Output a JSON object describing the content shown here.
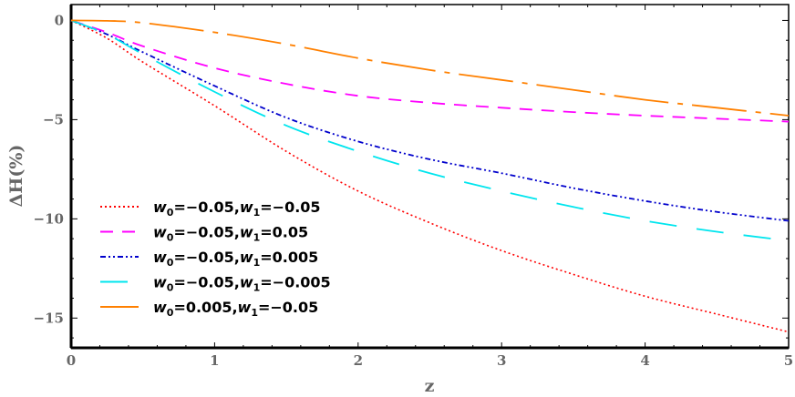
{
  "chart_data": {
    "type": "line",
    "title": "",
    "xlabel": "z",
    "ylabel": "ΔH(%)",
    "xlim": [
      0,
      5
    ],
    "ylim": [
      -16.5,
      0.8
    ],
    "xticks": [
      0,
      1,
      2,
      3,
      4,
      5
    ],
    "yticks": [
      0,
      -5,
      -10,
      -15
    ],
    "ytick_labels": [
      "0",
      "−5",
      "−10",
      "−15"
    ],
    "grid": false,
    "legend_position": "bottom-left",
    "x": [
      0,
      0.25,
      0.5,
      1,
      1.5,
      2,
      2.5,
      3,
      3.5,
      4,
      4.5,
      5
    ],
    "series": [
      {
        "name": "w0=−0.05,w1=−0.05",
        "color": "#ff0000",
        "dash": "dotted",
        "values": [
          0,
          -0.9,
          -2.1,
          -4.3,
          -6.6,
          -8.6,
          -10.2,
          -11.6,
          -12.8,
          -13.9,
          -14.8,
          -15.7
        ]
      },
      {
        "name": "w0=−0.05,w1=0.05",
        "color": "#ff00ff",
        "dash": "dashed",
        "values": [
          0,
          -0.6,
          -1.3,
          -2.4,
          -3.2,
          -3.8,
          -4.15,
          -4.4,
          -4.62,
          -4.8,
          -4.95,
          -5.1
        ]
      },
      {
        "name": "w0=−0.05,w1=0.005",
        "color": "#0000cc",
        "dash": "dashdotdot",
        "values": [
          0,
          -0.7,
          -1.6,
          -3.3,
          -4.9,
          -6.1,
          -7.0,
          -7.7,
          -8.45,
          -9.1,
          -9.65,
          -10.1
        ]
      },
      {
        "name": "w0=−0.05,w1=−0.005",
        "color": "#00e5ee",
        "dash": "longdash",
        "values": [
          0,
          -0.7,
          -1.7,
          -3.6,
          -5.3,
          -6.6,
          -7.7,
          -8.6,
          -9.4,
          -10.1,
          -10.65,
          -11.1
        ]
      },
      {
        "name": "w0=0.005,w1=−0.05",
        "color": "#ff8000",
        "dash": "longdashdot",
        "values": [
          0,
          -0.02,
          -0.12,
          -0.6,
          -1.2,
          -1.9,
          -2.5,
          -3.0,
          -3.5,
          -4.0,
          -4.4,
          -4.8
        ]
      }
    ],
    "legend_labels": [
      {
        "w0": "−0.05",
        "w1": "−0.05"
      },
      {
        "w0": "−0.05",
        "w1": "0.05"
      },
      {
        "w0": "−0.05",
        "w1": "0.005"
      },
      {
        "w0": "−0.05",
        "w1": "−0.005"
      },
      {
        "w0": "0.005",
        "w1": "−0.05"
      }
    ]
  }
}
